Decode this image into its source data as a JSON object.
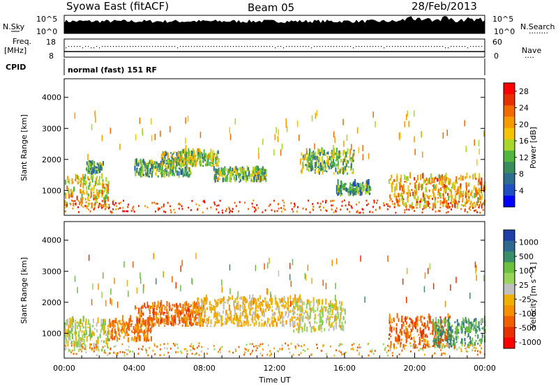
{
  "header": {
    "station": "Syowa East (fitACF)",
    "beam": "Beam 05",
    "date": "28/Feb/2013"
  },
  "panel_labels": {
    "nsky": "N.Sky",
    "nsearch": "N.Search",
    "nsearch_dots": "........",
    "freq_line1": "Freq.",
    "freq_line2": "[MHz]",
    "nave": "Nave",
    "nave_dots": "....",
    "cpid": "CPID",
    "cpid_value": "normal (fast) 151 RF"
  },
  "noise_axis": {
    "left_top": "10^5",
    "left_bottom": "10^0",
    "right_top": "10^5",
    "right_bottom": "10^0"
  },
  "freq_axis": {
    "left_top": "18",
    "left_bottom": "8",
    "right_top": "60",
    "right_bottom": "0"
  },
  "chart_data": [
    {
      "type": "heatmap",
      "name": "power",
      "xlabel": "",
      "ylabel": "Slant Range [km]",
      "ylim": [
        200,
        4600
      ],
      "xlim": [
        0,
        24
      ],
      "yticks": [
        "1000",
        "2000",
        "3000",
        "4000"
      ],
      "colorbar": {
        "label": "Power [dB]",
        "ticks": [
          "4",
          "8",
          "12",
          "16",
          "20",
          "24",
          "28"
        ],
        "range": [
          0,
          30
        ],
        "colors": [
          "#0000ff",
          "#1f4fc1",
          "#2e6d8e",
          "#3a8c5c",
          "#52b640",
          "#a9d62a",
          "#f5c400",
          "#f59a00",
          "#f06a00",
          "#e63000",
          "#ff0000"
        ]
      },
      "echo_regions": [
        {
          "t0": 0.0,
          "t1": 2.5,
          "r0": 400,
          "r1": 1400,
          "value": 18
        },
        {
          "t0": 1.2,
          "t1": 2.2,
          "r0": 1500,
          "r1": 1850,
          "value": 10
        },
        {
          "t0": 4.0,
          "t1": 7.2,
          "r0": 1400,
          "r1": 1900,
          "value": 12
        },
        {
          "t0": 5.5,
          "t1": 8.8,
          "r0": 1750,
          "r1": 2200,
          "value": 14
        },
        {
          "t0": 8.5,
          "t1": 11.5,
          "r0": 1250,
          "r1": 1650,
          "value": 13
        },
        {
          "t0": 13.5,
          "t1": 16.5,
          "r0": 1500,
          "r1": 2200,
          "value": 12
        },
        {
          "t0": 15.5,
          "t1": 17.5,
          "r0": 800,
          "r1": 1200,
          "value": 10
        },
        {
          "t0": 18.5,
          "t1": 24.0,
          "r0": 400,
          "r1": 1400,
          "value": 20
        }
      ]
    },
    {
      "type": "heatmap",
      "name": "velocity",
      "xlabel": "Time UT",
      "ylabel": "Slant Range [km]",
      "ylim": [
        200,
        4600
      ],
      "xlim": [
        0,
        24
      ],
      "xticks": [
        "00:00",
        "04:00",
        "08:00",
        "12:00",
        "16:00",
        "20:00",
        "00:00"
      ],
      "yticks": [
        "1000",
        "2000",
        "3000",
        "4000"
      ],
      "colorbar": {
        "label": "Velocity [m s^-1]",
        "ticks": [
          "1000",
          "500",
          "100",
          "25",
          "-25",
          "-100",
          "-500",
          "-1000"
        ],
        "colors": [
          "#1e3fa8",
          "#2e6a8f",
          "#3c8d6a",
          "#6cc040",
          "#9ad35a",
          "#c0c0c0",
          "#f0b000",
          "#f59000",
          "#f06000",
          "#e83000",
          "#ff0000"
        ]
      },
      "echo_regions": [
        {
          "t0": 0.0,
          "t1": 2.5,
          "r0": 400,
          "r1": 1400,
          "value": 60
        },
        {
          "t0": 2.5,
          "t1": 5.0,
          "r0": 700,
          "r1": 1400,
          "value": -120
        },
        {
          "t0": 4.0,
          "t1": 8.0,
          "r0": 1200,
          "r1": 1900,
          "value": -150
        },
        {
          "t0": 7.5,
          "t1": 13.5,
          "r0": 1200,
          "r1": 2100,
          "value": 0
        },
        {
          "t0": 13.0,
          "t1": 16.0,
          "r0": 1000,
          "r1": 2000,
          "value": 40
        },
        {
          "t0": 18.5,
          "t1": 22.0,
          "r0": 500,
          "r1": 1500,
          "value": -200
        },
        {
          "t0": 21.0,
          "t1": 24.0,
          "r0": 500,
          "r1": 1400,
          "value": 300
        }
      ]
    }
  ]
}
